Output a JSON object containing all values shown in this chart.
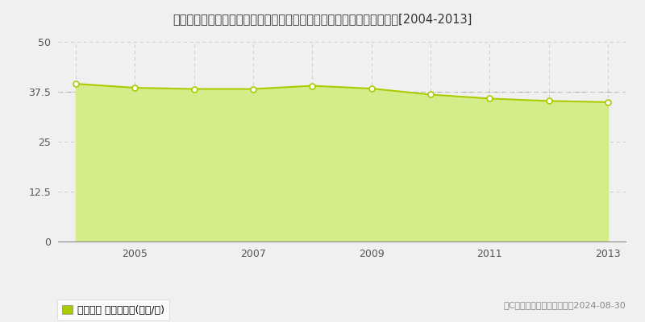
{
  "title": "埼玉県さいたま市見沼区大字御蔵字原前９５番２　地価公示　地価推移[2004-2013]",
  "years": [
    2004,
    2005,
    2006,
    2007,
    2008,
    2009,
    2010,
    2011,
    2012,
    2013
  ],
  "values": [
    39.5,
    38.5,
    38.2,
    38.2,
    39.0,
    38.3,
    36.8,
    35.8,
    35.2,
    34.9
  ],
  "ylim": [
    0,
    50
  ],
  "yticks": [
    0,
    12.5,
    25,
    37.5,
    50
  ],
  "line_color": "#aacc00",
  "fill_color": "#d4ed8a",
  "marker_color": "#ffffff",
  "marker_edge_color": "#aacc00",
  "grid_color": "#cccccc",
  "bg_color": "#f0f0f0",
  "plot_bg_color": "#f0f0f0",
  "legend_label": "地価公示 平均嵪単価(万円/嵪)",
  "legend_marker_color": "#aacc00",
  "copyright_text": "（C）土地価格ドットコム　2024-08-30",
  "xlabel_years": [
    2005,
    2007,
    2009,
    2011,
    2013
  ],
  "dashed_line_value": 37.5
}
